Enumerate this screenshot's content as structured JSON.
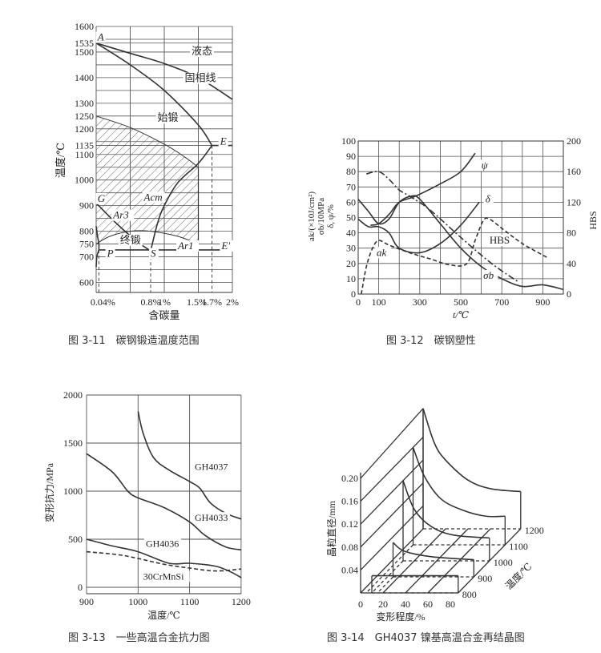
{
  "chart_data": [
    {
      "type": "line",
      "caption": "图 3-11　碳钢锻造温度范围",
      "xlabel": "含碳量",
      "ylabel": "温度/℃",
      "xlim": [
        0,
        2
      ],
      "ylim": [
        560,
        1600
      ],
      "grid": true,
      "x_ticks": [
        {
          "v": 0.04,
          "label": "0.04%"
        },
        {
          "v": 0.8,
          "label": "0.8%"
        },
        {
          "v": 1,
          "label": "1%"
        },
        {
          "v": 1.5,
          "label": "1.5%"
        },
        {
          "v": 1.7,
          "label": "1.7%"
        },
        {
          "v": 2,
          "label": "2%"
        }
      ],
      "y_ticks": [
        600,
        700,
        750,
        800,
        900,
        1000,
        1100,
        1135,
        1200,
        1250,
        1300,
        1400,
        1500,
        1535,
        1600
      ],
      "series": [
        {
          "key": "liquidus",
          "points": [
            [
              0,
              1535
            ],
            [
              0.5,
              1495
            ],
            [
              1,
              1455
            ],
            [
              1.5,
              1400
            ],
            [
              2,
              1315
            ]
          ]
        },
        {
          "key": "solidus",
          "points": [
            [
              0,
              1535
            ],
            [
              0.5,
              1450
            ],
            [
              1,
              1350
            ],
            [
              1.5,
              1215
            ],
            [
              1.7,
              1135
            ]
          ]
        },
        {
          "key": "eutectic",
          "points": [
            [
              1.7,
              1135
            ],
            [
              2,
              1135
            ]
          ]
        },
        {
          "key": "acm",
          "points": [
            [
              0.8,
              723
            ],
            [
              0.9,
              830
            ],
            [
              1,
              900
            ],
            [
              1.2,
              990
            ],
            [
              1.5,
              1065
            ],
            [
              1.7,
              1135
            ]
          ]
        },
        {
          "key": "ar3",
          "points": [
            [
              0,
              910
            ],
            [
              0.3,
              830
            ],
            [
              0.6,
              760
            ],
            [
              0.8,
              723
            ]
          ]
        },
        {
          "key": "ar1",
          "points": [
            [
              0.04,
              727
            ],
            [
              2,
              727
            ]
          ]
        },
        {
          "key": "start_forging",
          "points": [
            [
              0,
              1250
            ],
            [
              0.5,
              1205
            ],
            [
              1,
              1140
            ],
            [
              1.3,
              1090
            ],
            [
              1.5,
              1050
            ]
          ]
        },
        {
          "key": "finish_forging",
          "points": [
            [
              0,
              750
            ],
            [
              0.2,
              780
            ],
            [
              0.5,
              800
            ],
            [
              0.8,
              800
            ],
            [
              1.2,
              780
            ],
            [
              1.5,
              750
            ]
          ]
        },
        {
          "key": "ferrite_upper",
          "points": [
            [
              0,
              820
            ],
            [
              0.02,
              780
            ],
            [
              0.04,
              750
            ],
            [
              0.04,
              727
            ]
          ]
        },
        {
          "key": "ferrite_lower",
          "points": [
            [
              0.04,
              727
            ],
            [
              0.01,
              700
            ],
            [
              0,
              660
            ]
          ]
        }
      ],
      "annotations": [
        {
          "text": "液态",
          "x": 1.4,
          "y": 1490
        },
        {
          "text": "固相线",
          "x": 1.3,
          "y": 1385
        },
        {
          "text": "始锻",
          "x": 0.9,
          "y": 1230
        },
        {
          "text": "终锻",
          "x": 0.35,
          "y": 752
        },
        {
          "text": "A",
          "x": 0.02,
          "y": 1545
        },
        {
          "text": "E",
          "x": 1.82,
          "y": 1138
        },
        {
          "text": "E′",
          "x": 1.84,
          "y": 730
        },
        {
          "text": "G",
          "x": 0.02,
          "y": 915
        },
        {
          "text": "Acm",
          "x": 0.7,
          "y": 920
        },
        {
          "text": "Ar3",
          "x": 0.25,
          "y": 850
        },
        {
          "text": "Ar1",
          "x": 1.2,
          "y": 730
        },
        {
          "text": "P",
          "x": 0.16,
          "y": 700
        },
        {
          "text": "S",
          "x": 0.8,
          "y": 700
        }
      ]
    },
    {
      "type": "line",
      "caption": "图 3-12　碳钢塑性",
      "xlabel": "t/℃",
      "ylabel_lines": [
        "ak/(×10J/cm²)",
        "σb/10MPa",
        "δ, ψ/%"
      ],
      "y2label": "HBS",
      "xlim": [
        0,
        1000
      ],
      "ylim": [
        0,
        100
      ],
      "y2lim": [
        0,
        200
      ],
      "grid": true,
      "x_ticks": [
        0,
        100,
        300,
        500,
        700,
        900
      ],
      "y_ticks": [
        0,
        10,
        20,
        30,
        40,
        50,
        60,
        70,
        80,
        90,
        100
      ],
      "y2_ticks": [
        0,
        40,
        80,
        120,
        160,
        200
      ],
      "series": [
        {
          "name": "ψ",
          "style": "solid",
          "points": [
            [
              60,
              45
            ],
            [
              100,
              46
            ],
            [
              150,
              52
            ],
            [
              200,
              60
            ],
            [
              280,
              64
            ],
            [
              400,
              72
            ],
            [
              500,
              80
            ],
            [
              570,
              92
            ]
          ]
        },
        {
          "name": "δ",
          "style": "solid",
          "points": [
            [
              0,
              49
            ],
            [
              50,
              44
            ],
            [
              100,
              44
            ],
            [
              150,
              40
            ],
            [
              200,
              30
            ],
            [
              300,
              27
            ],
            [
              400,
              33
            ],
            [
              500,
              45
            ],
            [
              590,
              60
            ]
          ]
        },
        {
          "name": "σb",
          "style": "solid",
          "points": [
            [
              0,
              62
            ],
            [
              50,
              54
            ],
            [
              100,
              46
            ],
            [
              150,
              49
            ],
            [
              200,
              60
            ],
            [
              260,
              64
            ],
            [
              300,
              62
            ],
            [
              400,
              46
            ],
            [
              500,
              30
            ],
            [
              600,
              18
            ],
            [
              700,
              10
            ],
            [
              800,
              5
            ],
            [
              900,
              6
            ],
            [
              1000,
              3
            ]
          ]
        },
        {
          "name": "HBS",
          "style": "dashdot",
          "axis": "right",
          "points": [
            [
              40,
              157
            ],
            [
              100,
              160
            ],
            [
              150,
              150
            ],
            [
              200,
              136
            ],
            [
              250,
              128
            ],
            [
              350,
              110
            ],
            [
              500,
              74
            ],
            [
              650,
              40
            ],
            [
              780,
              16
            ]
          ]
        },
        {
          "name": "ak",
          "style": "dashed",
          "points": [
            [
              15,
              0
            ],
            [
              40,
              18
            ],
            [
              70,
              30
            ],
            [
              100,
              35
            ],
            [
              150,
              32
            ],
            [
              250,
              27
            ],
            [
              350,
              23
            ],
            [
              450,
              19
            ],
            [
              530,
              20
            ],
            [
              570,
              35
            ],
            [
              610,
              48
            ],
            [
              640,
              49
            ],
            [
              700,
              43
            ],
            [
              800,
              33
            ],
            [
              920,
              24
            ]
          ]
        }
      ],
      "annotations": [
        {
          "text": "ψ",
          "x": 600,
          "y": 82
        },
        {
          "text": "δ",
          "x": 620,
          "y": 60
        },
        {
          "text": "HBS",
          "x": 640,
          "y": 33
        },
        {
          "text": "ak",
          "x": 90,
          "y": 25
        },
        {
          "text": "σb",
          "x": 610,
          "y": 10
        }
      ]
    },
    {
      "type": "line",
      "caption": "图 3-13　一些高温合金抗力图",
      "xlabel": "温度/℃",
      "ylabel": "变形抗力/MPa",
      "xlim": [
        900,
        1200
      ],
      "ylim": [
        0,
        2000
      ],
      "grid": true,
      "x_ticks": [
        900,
        1000,
        1100,
        1200
      ],
      "y_ticks": [
        0,
        500,
        1000,
        1500,
        2000
      ],
      "series": [
        {
          "name": "GH4037",
          "style": "solid",
          "points": [
            [
              1000,
              1830
            ],
            [
              1010,
              1600
            ],
            [
              1030,
              1350
            ],
            [
              1060,
              1220
            ],
            [
              1100,
              1100
            ],
            [
              1120,
              1030
            ],
            [
              1140,
              880
            ],
            [
              1170,
              770
            ],
            [
              1200,
              710
            ]
          ]
        },
        {
          "name": "GH4033",
          "style": "solid",
          "points": [
            [
              900,
              1390
            ],
            [
              950,
              1200
            ],
            [
              980,
              1000
            ],
            [
              1000,
              930
            ],
            [
              1050,
              830
            ],
            [
              1100,
              680
            ],
            [
              1130,
              540
            ],
            [
              1170,
              420
            ],
            [
              1200,
              390
            ]
          ]
        },
        {
          "name": "GH4036",
          "style": "solid",
          "points": [
            [
              900,
              500
            ],
            [
              950,
              430
            ],
            [
              1000,
              370
            ],
            [
              1060,
              250
            ],
            [
              1100,
              250
            ],
            [
              1150,
              220
            ],
            [
              1180,
              160
            ],
            [
              1200,
              100
            ]
          ]
        },
        {
          "name": "30CrMnSi",
          "style": "dashed",
          "points": [
            [
              900,
              370
            ],
            [
              960,
              340
            ],
            [
              1000,
              300
            ],
            [
              1050,
              240
            ],
            [
              1100,
              200
            ],
            [
              1150,
              170
            ],
            [
              1200,
              190
            ]
          ]
        }
      ],
      "annotations": [
        {
          "text": "GH4037",
          "x": 1110,
          "y": 1220
        },
        {
          "text": "GH4033",
          "x": 1110,
          "y": 690
        },
        {
          "text": "GH4036",
          "x": 1015,
          "y": 420
        },
        {
          "text": "30CrMnSi",
          "x": 1010,
          "y": 80
        }
      ]
    },
    {
      "type": "surface3d",
      "caption": "图 3-14　GH4037 镍基高温合金再结晶图",
      "xlabel": "变形程度/%",
      "ylabel": "晶粒直径/mm",
      "zlabel": "温度/℃",
      "x_ticks": [
        0,
        20,
        40,
        60,
        80
      ],
      "y_ticks": [
        0.04,
        0.08,
        0.12,
        0.16,
        0.2
      ],
      "z_ticks": [
        800,
        900,
        1000,
        1100,
        1200
      ],
      "series": [
        {
          "temperature": 800,
          "points": [
            [
              10,
              0.03
            ],
            [
              87,
              0.03
            ]
          ]
        },
        {
          "temperature": 900,
          "points": [
            [
              15,
              0.06
            ],
            [
              25,
              0.045
            ],
            [
              50,
              0.035
            ],
            [
              87,
              0.03
            ]
          ]
        },
        {
          "temperature": 1000,
          "points": [
            [
              10,
              0.14
            ],
            [
              20,
              0.09
            ],
            [
              35,
              0.06
            ],
            [
              55,
              0.045
            ],
            [
              87,
              0.04
            ]
          ]
        },
        {
          "temperature": 1100,
          "points": [
            [
              5,
              0.17
            ],
            [
              15,
              0.12
            ],
            [
              30,
              0.08
            ],
            [
              50,
              0.06
            ],
            [
              70,
              0.05
            ],
            [
              87,
              0.05
            ]
          ]
        },
        {
          "temperature": 1200,
          "points": [
            [
              0,
              0.21
            ],
            [
              10,
              0.15
            ],
            [
              20,
              0.12
            ],
            [
              40,
              0.085
            ],
            [
              60,
              0.07
            ],
            [
              87,
              0.065
            ]
          ]
        }
      ]
    }
  ]
}
